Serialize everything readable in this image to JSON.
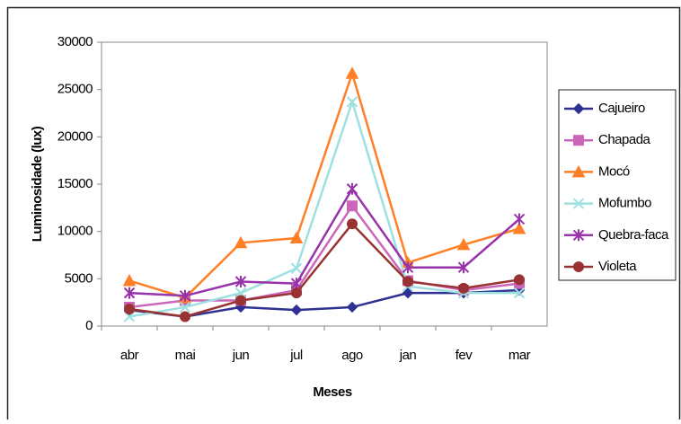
{
  "chart_data": {
    "type": "line",
    "x_label": "Meses",
    "y_label": "Luminosidade (lux)",
    "categories": [
      "abr",
      "mai",
      "jun",
      "jul",
      "ago",
      "jan",
      "fev",
      "mar"
    ],
    "ylim": [
      0,
      30000
    ],
    "yticks": [
      0,
      5000,
      10000,
      15000,
      20000,
      25000,
      30000
    ],
    "grid": false,
    "legend": "right",
    "series": [
      {
        "name": "Cajueiro",
        "color": "#2e3192",
        "marker": "diamond",
        "values": [
          1700,
          1000,
          2000,
          1700,
          2000,
          3500,
          3500,
          3800
        ]
      },
      {
        "name": "Chapada",
        "color": "#cc66bb",
        "marker": "square",
        "values": [
          2000,
          2700,
          2700,
          3800,
          12700,
          4800,
          3800,
          4500
        ]
      },
      {
        "name": "Mocó",
        "color": "#ff7f27",
        "marker": "triangle",
        "values": [
          4800,
          3000,
          8800,
          9300,
          26700,
          6700,
          8600,
          10300
        ]
      },
      {
        "name": "Mofumbo",
        "color": "#9ee0e0",
        "marker": "x",
        "values": [
          1000,
          2000,
          3500,
          6100,
          23700,
          4200,
          3500,
          3500
        ]
      },
      {
        "name": "Quebra-faca",
        "color": "#9933aa",
        "marker": "star",
        "values": [
          3500,
          3200,
          4700,
          4500,
          14500,
          6200,
          6200,
          11300
        ]
      },
      {
        "name": "Violeta",
        "color": "#993333",
        "marker": "circle",
        "values": [
          1800,
          1000,
          2700,
          3500,
          10800,
          4700,
          4000,
          4900
        ]
      }
    ]
  }
}
